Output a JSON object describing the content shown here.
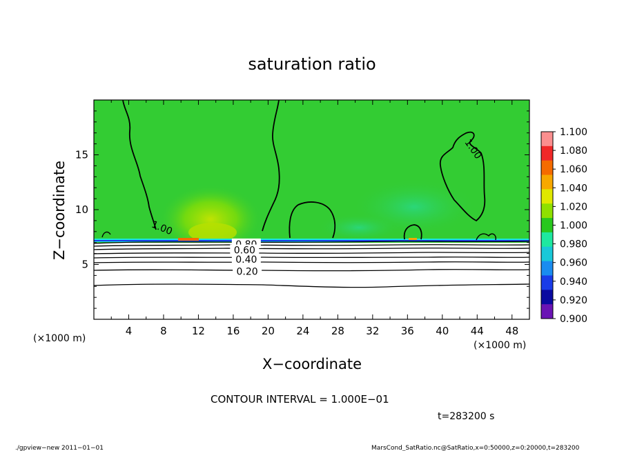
{
  "chart_data": {
    "type": "heatmap",
    "title": "saturation ratio",
    "xlabel": "X−coordinate",
    "ylabel": "Z−coordinate",
    "x_unit": "(×1000 m)",
    "y_unit": "(×1000 m)",
    "xlim": [
      0,
      50
    ],
    "ylim": [
      0,
      20
    ],
    "x_ticks": [
      "4",
      "8",
      "12",
      "16",
      "20",
      "24",
      "28",
      "32",
      "36",
      "40",
      "44",
      "48"
    ],
    "y_ticks": [
      "5",
      "10",
      "15"
    ],
    "x_tick_values": [
      4,
      8,
      12,
      16,
      20,
      24,
      28,
      32,
      36,
      40,
      44,
      48
    ],
    "y_tick_values": [
      5,
      10,
      15
    ],
    "colorbar": {
      "labels": [
        "1.100",
        "1.080",
        "1.060",
        "1.040",
        "1.020",
        "1.000",
        "0.980",
        "0.960",
        "0.940",
        "0.920",
        "0.900"
      ],
      "colors": [
        "#fb8f8f",
        "#f02828",
        "#f56b00",
        "#f7a800",
        "#e0e800",
        "#8fe000",
        "#28c81e",
        "#1ee8a0",
        "#19c8d8",
        "#1a8cf0",
        "#1a3ce8",
        "#0a0aa0",
        "#6a14b4"
      ]
    },
    "field_background": "#33cc33",
    "contour_labels": [
      {
        "text": "1.00",
        "x": 7.8,
        "y": 8.3
      },
      {
        "text": "1.00",
        "x": 43.5,
        "y": 15.5
      },
      {
        "text": "0.80",
        "x": 17.5,
        "y": 6.8
      },
      {
        "text": "0.60",
        "x": 17.3,
        "y": 6.25
      },
      {
        "text": "0.40",
        "x": 17.5,
        "y": 5.4
      },
      {
        "text": "0.20",
        "x": 17.6,
        "y": 4.3
      }
    ],
    "contour_interval": "CONTOUR INTERVAL = 1.000E−01",
    "time_label": "t=283200 s"
  },
  "footer": {
    "left": "./gpview−new  2011−01−01",
    "right": "MarsCond_SatRatio.nc@SatRatio,x=0:50000,z=0:20000,t=283200"
  }
}
